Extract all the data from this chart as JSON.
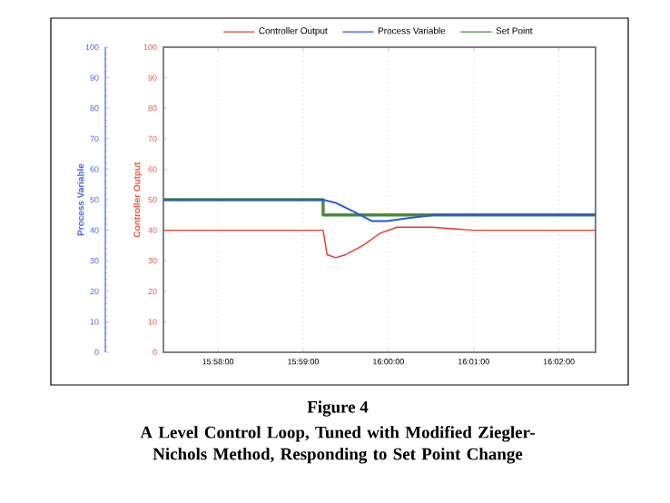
{
  "chart_data": {
    "type": "line",
    "title": "Figure 4",
    "subtitle": "A Level Control Loop, Tuned with Modified Ziegler-Nichols Method, Responding to Set Point Change",
    "ylabel": "Process Variable",
    "y2label": "Controller Output",
    "xlim": [
      15.956,
      16.0405
    ],
    "xticks": [
      {
        "value": 15.96667,
        "label": "15:58:00"
      },
      {
        "value": 15.98333,
        "label": "15:59:00"
      },
      {
        "value": 16.0,
        "label": "16:00:00"
      },
      {
        "value": 16.01667,
        "label": "16:01:00"
      },
      {
        "value": 16.03333,
        "label": "16:02:00"
      }
    ],
    "ylim": [
      0,
      100
    ],
    "yticks": [
      0,
      10,
      20,
      30,
      40,
      50,
      60,
      70,
      80,
      90,
      100
    ],
    "y2lim": [
      0,
      100
    ],
    "y2ticks": [
      0,
      10,
      20,
      30,
      40,
      50,
      60,
      70,
      80,
      90,
      100
    ],
    "grid": "x",
    "legend": "top",
    "marker": "none",
    "line_style": "solid",
    "series": [
      {
        "name": "Controller Output",
        "color": "#e8392b",
        "axis": "y2",
        "x": [
          15.956,
          15.975,
          15.987,
          15.98723,
          15.988,
          15.98967,
          15.99167,
          15.995,
          15.99833,
          16.00167,
          16.00833,
          16.01667,
          16.025,
          16.03333,
          16.0405
        ],
        "values": [
          40,
          40,
          40,
          40,
          32,
          31,
          32,
          35,
          39,
          41,
          41,
          40,
          40,
          40,
          40
        ]
      },
      {
        "name": "Process Variable",
        "color": "#2a55e8",
        "x": [
          15.956,
          15.96667,
          15.98723,
          15.98967,
          15.99333,
          15.99683,
          15.99967,
          16.00383,
          16.00917,
          16.01667,
          16.03333,
          16.0405
        ],
        "values": [
          50,
          50,
          50,
          49,
          46,
          43,
          43,
          44,
          45,
          45,
          45,
          45
        ]
      },
      {
        "name": "Set Point",
        "color": "#4a8a3a",
        "x": [
          15.956,
          15.98723,
          15.98723,
          16.0405
        ],
        "values": [
          50,
          50,
          45,
          45
        ]
      }
    ]
  }
}
